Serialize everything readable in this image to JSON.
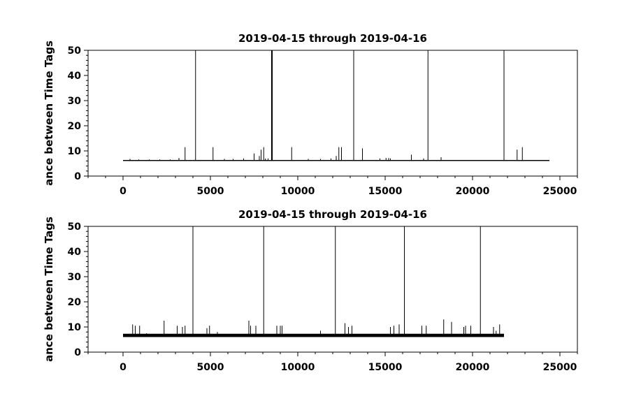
{
  "chart_data": [
    {
      "type": "line",
      "title": "2019-04-15 through 2019-04-16",
      "ylabel": "ance between Time Tags",
      "xlabel": "",
      "xlim": [
        -2000,
        26000
      ],
      "ylim": [
        0,
        50
      ],
      "xticks": [
        0,
        5000,
        10000,
        15000,
        20000,
        25000
      ],
      "yticks": [
        0,
        10,
        20,
        30,
        40,
        50
      ],
      "grid": false,
      "baseline": {
        "x_start": 0,
        "x_end": 24400,
        "y": 6.2,
        "band": [
          6.0,
          6.4
        ]
      },
      "spikes": [
        {
          "x": 400,
          "y": 6.8
        },
        {
          "x": 900,
          "y": 6.6
        },
        {
          "x": 1500,
          "y": 6.6
        },
        {
          "x": 2100,
          "y": 6.6
        },
        {
          "x": 2700,
          "y": 6.6
        },
        {
          "x": 3200,
          "y": 7.2
        },
        {
          "x": 3550,
          "y": 11.5
        },
        {
          "x": 4150,
          "y": 50
        },
        {
          "x": 5150,
          "y": 11.5
        },
        {
          "x": 5800,
          "y": 6.8
        },
        {
          "x": 6300,
          "y": 6.8
        },
        {
          "x": 6900,
          "y": 7.0
        },
        {
          "x": 7500,
          "y": 9.0
        },
        {
          "x": 7800,
          "y": 8.0
        },
        {
          "x": 7900,
          "y": 10.5
        },
        {
          "x": 8050,
          "y": 11.5
        },
        {
          "x": 8150,
          "y": 7.0
        },
        {
          "x": 8300,
          "y": 7.0
        },
        {
          "x": 8500,
          "y": 50
        },
        {
          "x": 8540,
          "y": 50
        },
        {
          "x": 9650,
          "y": 11.5
        },
        {
          "x": 10600,
          "y": 6.8
        },
        {
          "x": 11300,
          "y": 6.8
        },
        {
          "x": 11900,
          "y": 7.0
        },
        {
          "x": 12200,
          "y": 8.0
        },
        {
          "x": 12350,
          "y": 11.5
        },
        {
          "x": 12500,
          "y": 11.5
        },
        {
          "x": 13200,
          "y": 50
        },
        {
          "x": 13700,
          "y": 11.0
        },
        {
          "x": 14700,
          "y": 7.0
        },
        {
          "x": 15050,
          "y": 7.2
        },
        {
          "x": 15200,
          "y": 7.2
        },
        {
          "x": 15300,
          "y": 7.0
        },
        {
          "x": 16500,
          "y": 8.5
        },
        {
          "x": 17200,
          "y": 7.0
        },
        {
          "x": 17450,
          "y": 50
        },
        {
          "x": 18200,
          "y": 7.5
        },
        {
          "x": 21800,
          "y": 50
        },
        {
          "x": 22550,
          "y": 10.5
        },
        {
          "x": 22850,
          "y": 11.5
        }
      ]
    },
    {
      "type": "line",
      "title": "2019-04-15 through 2019-04-16",
      "ylabel": "ance between Time Tags",
      "xlabel": "",
      "xlim": [
        -2000,
        26000
      ],
      "ylim": [
        0,
        50
      ],
      "xticks": [
        0,
        5000,
        10000,
        15000,
        20000,
        25000
      ],
      "yticks": [
        0,
        10,
        20,
        30,
        40,
        50
      ],
      "grid": false,
      "baseline": {
        "x_start": 0,
        "x_end": 21800,
        "y": 6.6,
        "band": [
          6.0,
          7.3
        ]
      },
      "spikes": [
        {
          "x": 550,
          "y": 11.0
        },
        {
          "x": 700,
          "y": 10.5
        },
        {
          "x": 950,
          "y": 10.5
        },
        {
          "x": 1350,
          "y": 7.5
        },
        {
          "x": 2350,
          "y": 12.5
        },
        {
          "x": 3100,
          "y": 10.5
        },
        {
          "x": 3400,
          "y": 10.0
        },
        {
          "x": 3550,
          "y": 10.5
        },
        {
          "x": 4000,
          "y": 50
        },
        {
          "x": 4800,
          "y": 9.5
        },
        {
          "x": 4950,
          "y": 10.5
        },
        {
          "x": 5400,
          "y": 8.0
        },
        {
          "x": 7200,
          "y": 12.5
        },
        {
          "x": 7300,
          "y": 10.5
        },
        {
          "x": 7600,
          "y": 10.5
        },
        {
          "x": 8050,
          "y": 50
        },
        {
          "x": 8800,
          "y": 10.5
        },
        {
          "x": 9000,
          "y": 10.5
        },
        {
          "x": 9100,
          "y": 10.5
        },
        {
          "x": 11300,
          "y": 8.5
        },
        {
          "x": 12150,
          "y": 50
        },
        {
          "x": 12700,
          "y": 11.5
        },
        {
          "x": 12900,
          "y": 10.0
        },
        {
          "x": 13100,
          "y": 10.5
        },
        {
          "x": 15300,
          "y": 10.0
        },
        {
          "x": 15500,
          "y": 10.5
        },
        {
          "x": 15800,
          "y": 11.0
        },
        {
          "x": 16100,
          "y": 50
        },
        {
          "x": 17100,
          "y": 10.5
        },
        {
          "x": 17350,
          "y": 10.5
        },
        {
          "x": 18350,
          "y": 13.0
        },
        {
          "x": 18800,
          "y": 12.0
        },
        {
          "x": 19500,
          "y": 10.0
        },
        {
          "x": 19600,
          "y": 10.5
        },
        {
          "x": 19900,
          "y": 10.5
        },
        {
          "x": 20450,
          "y": 50
        },
        {
          "x": 21200,
          "y": 10.0
        },
        {
          "x": 21350,
          "y": 8.5
        },
        {
          "x": 21550,
          "y": 11.0
        }
      ]
    }
  ]
}
